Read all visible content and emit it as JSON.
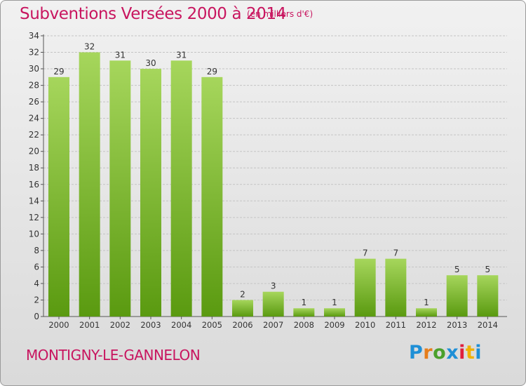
{
  "page": {
    "title": "Subventions Versées 2000 à 2014",
    "unit_note": "(en milliers d'€)",
    "commune": "MONTIGNY-LE-GANNELON",
    "logo_text": "Proxiti",
    "logo_colors": [
      "#1e8fd6",
      "#e67d1a",
      "#4aa02c",
      "#1e8fd6",
      "#e01e3c",
      "#f0b000",
      "#1e8fd6"
    ]
  },
  "colors": {
    "accent": "#c8155f",
    "bar_top": "#a6d65c",
    "bar_bottom": "#5a9a10",
    "grid": "#c4c4c4"
  },
  "chart_data": {
    "type": "bar",
    "categories": [
      "2000",
      "2001",
      "2002",
      "2003",
      "2004",
      "2005",
      "2006",
      "2007",
      "2008",
      "2009",
      "2010",
      "2011",
      "2012",
      "2013",
      "2014"
    ],
    "values": [
      29,
      32,
      31,
      30,
      31,
      29,
      2,
      3,
      1,
      1,
      7,
      7,
      1,
      5,
      5
    ],
    "title": "Subventions Versées 2000 à 2014",
    "xlabel": "",
    "ylabel": "",
    "ylim": [
      0,
      34
    ],
    "yticks": [
      0,
      2,
      4,
      6,
      8,
      10,
      12,
      14,
      16,
      18,
      20,
      22,
      24,
      26,
      28,
      30,
      32,
      34
    ],
    "grid": true,
    "legend": "none"
  }
}
